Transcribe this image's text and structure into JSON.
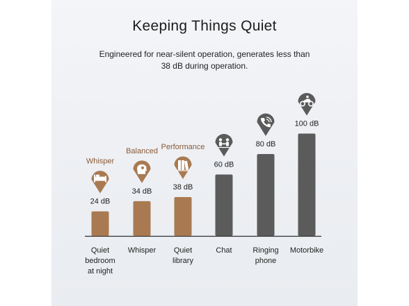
{
  "title": "Keeping Things Quiet",
  "subtitle": "Engineered for near-silent operation, generates less than 38 dB during operation.",
  "colors": {
    "copper": "#a97a52",
    "gray": "#5b5b5b",
    "label_copper": "#8a5a36",
    "baseline": "#2e2e2e"
  },
  "chart_data": {
    "type": "bar",
    "title": "Keeping Things Quiet",
    "categories": [
      "Quiet bedroom at night",
      "Whisper",
      "Quiet library",
      "Chat",
      "Ringing phone",
      "Motorbike"
    ],
    "category_lines": [
      [
        "Quiet",
        "bedroom",
        "at night"
      ],
      [
        "Whisper"
      ],
      [
        "Quiet",
        "library"
      ],
      [
        "Chat"
      ],
      [
        "Ringing",
        "phone"
      ],
      [
        "Motorbike"
      ]
    ],
    "values": [
      24,
      34,
      38,
      60,
      80,
      100
    ],
    "value_labels": [
      "24 dB",
      "34 dB",
      "38 dB",
      "60 dB",
      "80 dB",
      "100 dB"
    ],
    "unit": "dB",
    "ylim": [
      0,
      100
    ],
    "grid": false,
    "mode_labels": [
      "Whisper",
      "Balanced",
      "Performance"
    ],
    "bar_colors": [
      "copper",
      "copper",
      "copper",
      "gray",
      "gray",
      "gray"
    ],
    "icons": [
      "bed-icon",
      "person-head-icon",
      "books-icon",
      "people-chatting-icon",
      "ringing-phone-icon",
      "motorbike-icon"
    ]
  }
}
